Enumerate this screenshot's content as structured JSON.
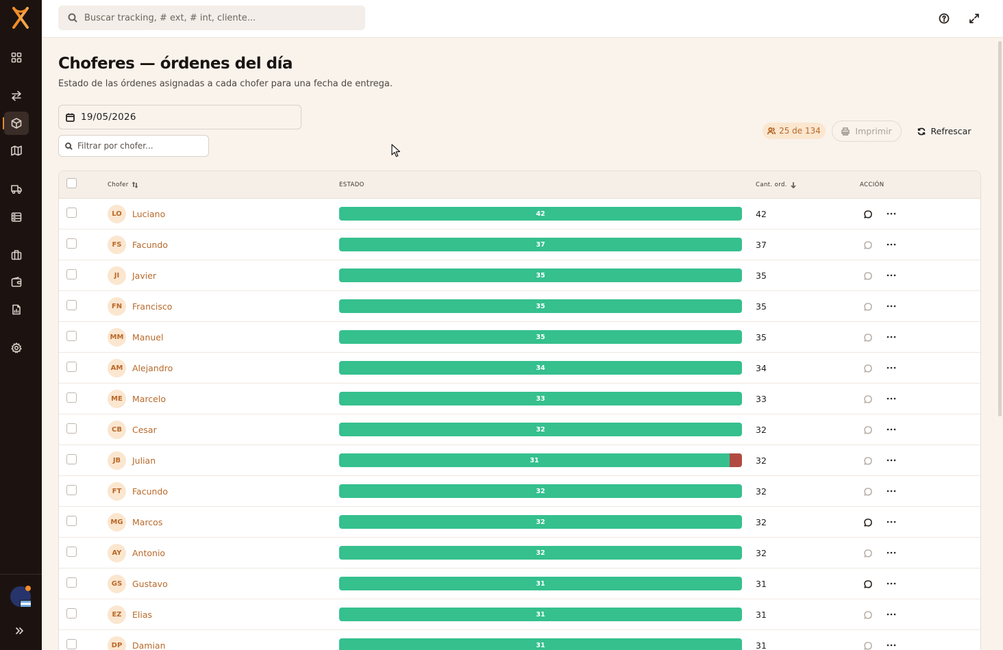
{
  "sidebar": {
    "nav": [
      {
        "name": "dashboard-icon"
      },
      {
        "name": "transfer-icon"
      },
      {
        "name": "package-icon",
        "active": true
      },
      {
        "name": "map-icon"
      },
      {
        "name": "truck-icon"
      },
      {
        "name": "server-icon"
      },
      {
        "name": "briefcase-icon"
      },
      {
        "name": "wallet-icon"
      },
      {
        "name": "report-icon"
      },
      {
        "name": "gear-icon"
      }
    ]
  },
  "topbar": {
    "search_placeholder": "Buscar tracking, # ext, # int, cliente..."
  },
  "header": {
    "title": "Choferes — órdenes del día",
    "subtitle": "Estado de las órdenes asignadas a cada chofer para una fecha de entrega."
  },
  "filters": {
    "date": "19/05/2026",
    "driver_placeholder": "Filtrar por chofer..."
  },
  "toolbar": {
    "count": "25 de 134",
    "print_label": "Imprimir",
    "refresh_label": "Refrescar"
  },
  "table": {
    "columns": {
      "driver": "Chofer",
      "status": "ESTADO",
      "qty": "Cant. ord.",
      "action": "ACCIÓN"
    },
    "rows": [
      {
        "initials": "LO",
        "name": "Luciano",
        "ok": 42,
        "bad": 0,
        "qty": "42",
        "chat_active": true
      },
      {
        "initials": "FS",
        "name": "Facundo",
        "ok": 37,
        "bad": 0,
        "qty": "37",
        "chat_active": false
      },
      {
        "initials": "JI",
        "name": "Javier",
        "ok": 35,
        "bad": 0,
        "qty": "35",
        "chat_active": false
      },
      {
        "initials": "FN",
        "name": "Francisco",
        "ok": 35,
        "bad": 0,
        "qty": "35",
        "chat_active": false
      },
      {
        "initials": "MM",
        "name": "Manuel",
        "ok": 35,
        "bad": 0,
        "qty": "35",
        "chat_active": false
      },
      {
        "initials": "AM",
        "name": "Alejandro",
        "ok": 34,
        "bad": 0,
        "qty": "34",
        "chat_active": false
      },
      {
        "initials": "ME",
        "name": "Marcelo",
        "ok": 33,
        "bad": 0,
        "qty": "33",
        "chat_active": false
      },
      {
        "initials": "CB",
        "name": "Cesar",
        "ok": 32,
        "bad": 0,
        "qty": "32",
        "chat_active": false
      },
      {
        "initials": "JB",
        "name": "Julian",
        "ok": 31,
        "bad": 1,
        "qty": "32",
        "chat_active": false
      },
      {
        "initials": "FT",
        "name": "Facundo",
        "ok": 32,
        "bad": 0,
        "qty": "32",
        "chat_active": false
      },
      {
        "initials": "MG",
        "name": "Marcos",
        "ok": 32,
        "bad": 0,
        "qty": "32",
        "chat_active": true
      },
      {
        "initials": "AY",
        "name": "Antonio",
        "ok": 32,
        "bad": 0,
        "qty": "32",
        "chat_active": false
      },
      {
        "initials": "GS",
        "name": "Gustavo",
        "ok": 31,
        "bad": 0,
        "qty": "31",
        "chat_active": true
      },
      {
        "initials": "EZ",
        "name": "Elias",
        "ok": 31,
        "bad": 0,
        "qty": "31",
        "chat_active": false
      },
      {
        "initials": "DP",
        "name": "Damian",
        "ok": 31,
        "bad": 0,
        "qty": "31",
        "chat_active": false
      }
    ]
  },
  "colors": {
    "accent": "#f28c28",
    "ok": "#35c08e",
    "bad": "#b24a43",
    "link": "#b8692a"
  }
}
